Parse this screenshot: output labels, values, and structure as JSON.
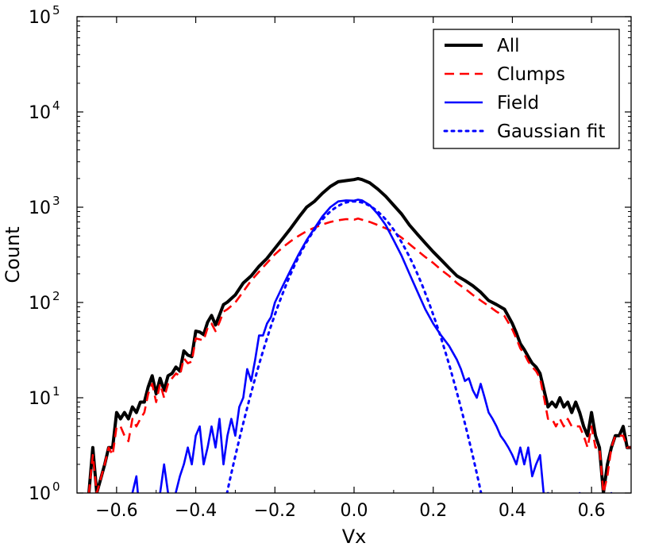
{
  "chart_data": {
    "type": "line",
    "xlabel": "Vx",
    "ylabel": "Count",
    "xlim": [
      -0.7,
      0.7
    ],
    "ylim": [
      1,
      100000
    ],
    "yscale": "log",
    "grid": false,
    "legend_position": "top-right",
    "x_ticks": [
      {
        "value": -0.6,
        "label": "−0.6"
      },
      {
        "value": -0.4,
        "label": "−0.4"
      },
      {
        "value": -0.2,
        "label": "−0.2"
      },
      {
        "value": 0.0,
        "label": "0.0"
      },
      {
        "value": 0.2,
        "label": "0.2"
      },
      {
        "value": 0.4,
        "label": "0.4"
      },
      {
        "value": 0.6,
        "label": "0.6"
      }
    ],
    "y_ticks": [
      {
        "value": 1,
        "base": "10",
        "exp": "0"
      },
      {
        "value": 10,
        "base": "10",
        "exp": "1"
      },
      {
        "value": 100,
        "base": "10",
        "exp": "2"
      },
      {
        "value": 1000,
        "base": "10",
        "exp": "3"
      },
      {
        "value": 10000,
        "base": "10",
        "exp": "4"
      },
      {
        "value": 100000,
        "base": "10",
        "exp": "5"
      }
    ],
    "series": [
      {
        "name": "All",
        "color": "#000000",
        "style": "solid",
        "points": [
          [
            -0.7,
            0.5
          ],
          [
            -0.67,
            1
          ],
          [
            -0.66,
            3
          ],
          [
            -0.65,
            1
          ],
          [
            -0.63,
            2
          ],
          [
            -0.62,
            3
          ],
          [
            -0.61,
            3
          ],
          [
            -0.6,
            7
          ],
          [
            -0.59,
            6
          ],
          [
            -0.58,
            7
          ],
          [
            -0.57,
            6
          ],
          [
            -0.56,
            8
          ],
          [
            -0.55,
            7
          ],
          [
            -0.54,
            9
          ],
          [
            -0.53,
            9
          ],
          [
            -0.52,
            13
          ],
          [
            -0.51,
            17
          ],
          [
            -0.5,
            11
          ],
          [
            -0.49,
            16
          ],
          [
            -0.48,
            12
          ],
          [
            -0.47,
            17
          ],
          [
            -0.46,
            18
          ],
          [
            -0.45,
            21
          ],
          [
            -0.44,
            19
          ],
          [
            -0.43,
            31
          ],
          [
            -0.42,
            28
          ],
          [
            -0.41,
            27
          ],
          [
            -0.4,
            50
          ],
          [
            -0.39,
            49
          ],
          [
            -0.38,
            46
          ],
          [
            -0.37,
            62
          ],
          [
            -0.36,
            73
          ],
          [
            -0.35,
            58
          ],
          [
            -0.34,
            74
          ],
          [
            -0.33,
            95
          ],
          [
            -0.32,
            101
          ],
          [
            -0.31,
            110
          ],
          [
            -0.3,
            120
          ],
          [
            -0.28,
            160
          ],
          [
            -0.26,
            190
          ],
          [
            -0.24,
            240
          ],
          [
            -0.22,
            290
          ],
          [
            -0.2,
            370
          ],
          [
            -0.18,
            470
          ],
          [
            -0.16,
            600
          ],
          [
            -0.14,
            780
          ],
          [
            -0.12,
            1000
          ],
          [
            -0.1,
            1150
          ],
          [
            -0.08,
            1400
          ],
          [
            -0.06,
            1650
          ],
          [
            -0.04,
            1850
          ],
          [
            -0.02,
            1900
          ],
          [
            0.0,
            1950
          ],
          [
            0.01,
            2000
          ],
          [
            0.02,
            1950
          ],
          [
            0.04,
            1800
          ],
          [
            0.06,
            1550
          ],
          [
            0.08,
            1300
          ],
          [
            0.1,
            1050
          ],
          [
            0.12,
            850
          ],
          [
            0.14,
            650
          ],
          [
            0.16,
            520
          ],
          [
            0.18,
            420
          ],
          [
            0.2,
            340
          ],
          [
            0.22,
            280
          ],
          [
            0.24,
            230
          ],
          [
            0.26,
            190
          ],
          [
            0.28,
            170
          ],
          [
            0.3,
            150
          ],
          [
            0.32,
            128
          ],
          [
            0.34,
            105
          ],
          [
            0.36,
            95
          ],
          [
            0.38,
            85
          ],
          [
            0.4,
            60
          ],
          [
            0.41,
            48
          ],
          [
            0.42,
            37
          ],
          [
            0.43,
            32
          ],
          [
            0.44,
            27
          ],
          [
            0.45,
            23
          ],
          [
            0.46,
            21
          ],
          [
            0.47,
            18
          ],
          [
            0.48,
            12
          ],
          [
            0.49,
            8
          ],
          [
            0.5,
            9
          ],
          [
            0.51,
            8
          ],
          [
            0.52,
            10
          ],
          [
            0.53,
            8
          ],
          [
            0.54,
            9
          ],
          [
            0.55,
            7
          ],
          [
            0.56,
            9
          ],
          [
            0.57,
            7
          ],
          [
            0.58,
            5
          ],
          [
            0.59,
            4
          ],
          [
            0.6,
            7
          ],
          [
            0.61,
            4
          ],
          [
            0.62,
            3
          ],
          [
            0.63,
            1
          ],
          [
            0.64,
            2
          ],
          [
            0.65,
            3
          ],
          [
            0.66,
            4
          ],
          [
            0.67,
            4
          ],
          [
            0.68,
            5
          ],
          [
            0.69,
            3
          ],
          [
            0.7,
            3
          ]
        ]
      },
      {
        "name": "Clumps",
        "color": "#ff0000",
        "style": "dashed",
        "points": [
          [
            -0.7,
            0.5
          ],
          [
            -0.67,
            1
          ],
          [
            -0.66,
            2.5
          ],
          [
            -0.65,
            1
          ],
          [
            -0.63,
            2
          ],
          [
            -0.62,
            3
          ],
          [
            -0.61,
            2.5
          ],
          [
            -0.6,
            5
          ],
          [
            -0.59,
            5
          ],
          [
            -0.58,
            4
          ],
          [
            -0.57,
            3.5
          ],
          [
            -0.56,
            6
          ],
          [
            -0.55,
            5
          ],
          [
            -0.54,
            6
          ],
          [
            -0.53,
            7
          ],
          [
            -0.52,
            11
          ],
          [
            -0.51,
            14
          ],
          [
            -0.5,
            9
          ],
          [
            -0.49,
            14
          ],
          [
            -0.48,
            10
          ],
          [
            -0.47,
            14
          ],
          [
            -0.46,
            16
          ],
          [
            -0.45,
            18
          ],
          [
            -0.44,
            17
          ],
          [
            -0.43,
            26
          ],
          [
            -0.42,
            23
          ],
          [
            -0.41,
            24
          ],
          [
            -0.4,
            42
          ],
          [
            -0.39,
            41
          ],
          [
            -0.38,
            40
          ],
          [
            -0.37,
            54
          ],
          [
            -0.36,
            60
          ],
          [
            -0.35,
            50
          ],
          [
            -0.34,
            62
          ],
          [
            -0.33,
            80
          ],
          [
            -0.32,
            85
          ],
          [
            -0.31,
            92
          ],
          [
            -0.3,
            100
          ],
          [
            -0.28,
            130
          ],
          [
            -0.26,
            170
          ],
          [
            -0.24,
            210
          ],
          [
            -0.22,
            260
          ],
          [
            -0.2,
            320
          ],
          [
            -0.18,
            380
          ],
          [
            -0.16,
            440
          ],
          [
            -0.14,
            500
          ],
          [
            -0.12,
            560
          ],
          [
            -0.1,
            610
          ],
          [
            -0.08,
            660
          ],
          [
            -0.06,
            700
          ],
          [
            -0.04,
            730
          ],
          [
            -0.02,
            750
          ],
          [
            0.0,
            740
          ],
          [
            0.01,
            760
          ],
          [
            0.02,
            740
          ],
          [
            0.04,
            700
          ],
          [
            0.06,
            650
          ],
          [
            0.08,
            600
          ],
          [
            0.1,
            550
          ],
          [
            0.12,
            480
          ],
          [
            0.14,
            410
          ],
          [
            0.16,
            350
          ],
          [
            0.18,
            300
          ],
          [
            0.2,
            260
          ],
          [
            0.22,
            220
          ],
          [
            0.24,
            190
          ],
          [
            0.26,
            160
          ],
          [
            0.28,
            140
          ],
          [
            0.3,
            120
          ],
          [
            0.32,
            105
          ],
          [
            0.34,
            92
          ],
          [
            0.36,
            80
          ],
          [
            0.38,
            72
          ],
          [
            0.4,
            52
          ],
          [
            0.41,
            42
          ],
          [
            0.42,
            33
          ],
          [
            0.43,
            29
          ],
          [
            0.44,
            24
          ],
          [
            0.45,
            21
          ],
          [
            0.46,
            19
          ],
          [
            0.47,
            16
          ],
          [
            0.48,
            10
          ],
          [
            0.49,
            6
          ],
          [
            0.5,
            6
          ],
          [
            0.51,
            5
          ],
          [
            0.52,
            6
          ],
          [
            0.53,
            5
          ],
          [
            0.54,
            6
          ],
          [
            0.55,
            5
          ],
          [
            0.56,
            5
          ],
          [
            0.57,
            5
          ],
          [
            0.58,
            4
          ],
          [
            0.59,
            3
          ],
          [
            0.6,
            5
          ],
          [
            0.61,
            3
          ],
          [
            0.62,
            3
          ],
          [
            0.63,
            1
          ],
          [
            0.64,
            1.5
          ],
          [
            0.65,
            3
          ],
          [
            0.66,
            4
          ],
          [
            0.67,
            4
          ],
          [
            0.68,
            4
          ],
          [
            0.69,
            3
          ],
          [
            0.7,
            3
          ]
        ]
      },
      {
        "name": "Field",
        "color": "#0000ff",
        "style": "solid",
        "points": [
          [
            -0.58,
            0.5
          ],
          [
            -0.56,
            1
          ],
          [
            -0.55,
            1.5
          ],
          [
            -0.54,
            0.5
          ],
          [
            -0.5,
            0.7
          ],
          [
            -0.49,
            1
          ],
          [
            -0.48,
            2
          ],
          [
            -0.47,
            1
          ],
          [
            -0.46,
            0.7
          ],
          [
            -0.44,
            1.5
          ],
          [
            -0.43,
            2
          ],
          [
            -0.42,
            3
          ],
          [
            -0.41,
            2
          ],
          [
            -0.4,
            4
          ],
          [
            -0.39,
            5
          ],
          [
            -0.38,
            2
          ],
          [
            -0.37,
            3
          ],
          [
            -0.36,
            5
          ],
          [
            -0.35,
            3
          ],
          [
            -0.34,
            6
          ],
          [
            -0.33,
            2
          ],
          [
            -0.32,
            4
          ],
          [
            -0.31,
            6
          ],
          [
            -0.3,
            4
          ],
          [
            -0.29,
            8
          ],
          [
            -0.28,
            10
          ],
          [
            -0.27,
            20
          ],
          [
            -0.26,
            15
          ],
          [
            -0.25,
            25
          ],
          [
            -0.24,
            45
          ],
          [
            -0.23,
            45
          ],
          [
            -0.22,
            60
          ],
          [
            -0.21,
            70
          ],
          [
            -0.2,
            100
          ],
          [
            -0.18,
            150
          ],
          [
            -0.16,
            220
          ],
          [
            -0.14,
            320
          ],
          [
            -0.12,
            450
          ],
          [
            -0.1,
            600
          ],
          [
            -0.08,
            800
          ],
          [
            -0.06,
            1000
          ],
          [
            -0.04,
            1150
          ],
          [
            -0.02,
            1180
          ],
          [
            0.0,
            1170
          ],
          [
            0.01,
            1200
          ],
          [
            0.02,
            1180
          ],
          [
            0.04,
            1050
          ],
          [
            0.06,
            850
          ],
          [
            0.08,
            650
          ],
          [
            0.1,
            450
          ],
          [
            0.12,
            310
          ],
          [
            0.14,
            200
          ],
          [
            0.16,
            130
          ],
          [
            0.18,
            85
          ],
          [
            0.2,
            60
          ],
          [
            0.22,
            45
          ],
          [
            0.24,
            35
          ],
          [
            0.26,
            25
          ],
          [
            0.27,
            20
          ],
          [
            0.28,
            15
          ],
          [
            0.29,
            16
          ],
          [
            0.3,
            12
          ],
          [
            0.31,
            10
          ],
          [
            0.32,
            14
          ],
          [
            0.33,
            10
          ],
          [
            0.34,
            7
          ],
          [
            0.35,
            6
          ],
          [
            0.36,
            5
          ],
          [
            0.37,
            4
          ],
          [
            0.38,
            3.5
          ],
          [
            0.39,
            3
          ],
          [
            0.4,
            2.5
          ],
          [
            0.41,
            2
          ],
          [
            0.42,
            3
          ],
          [
            0.43,
            2
          ],
          [
            0.44,
            3
          ],
          [
            0.45,
            1.5
          ],
          [
            0.46,
            2
          ],
          [
            0.47,
            2.5
          ],
          [
            0.48,
            0.9
          ],
          [
            0.49,
            1
          ],
          [
            0.5,
            0.5
          ],
          [
            0.56,
            0.5
          ],
          [
            0.57,
            1
          ],
          [
            0.58,
            0.5
          ],
          [
            0.64,
            0.5
          ],
          [
            0.65,
            1
          ],
          [
            0.66,
            0.5
          ]
        ]
      },
      {
        "name": "Gaussian fit",
        "color": "#0000ff",
        "style": "dotted",
        "gaussian": {
          "amplitude": 1150,
          "mean": 0.0,
          "sigma": 0.0855
        }
      }
    ]
  }
}
